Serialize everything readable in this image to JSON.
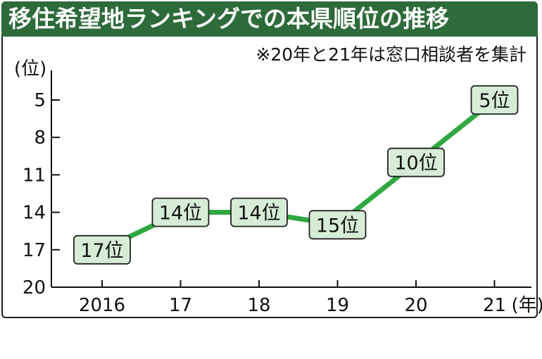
{
  "chart_data": {
    "type": "line",
    "title": "移住希望地ランキングでの本県順位の推移",
    "note": "※20年と21年は窓口相談者を集計",
    "ylabel": "(位)",
    "xlabel_unit": "(年)",
    "y_axis": {
      "inverted": true,
      "ylim": [
        20,
        3
      ],
      "ticks": [
        "5",
        "8",
        "11",
        "14",
        "17",
        "20"
      ]
    },
    "x_ticks": [
      "2016",
      "17",
      "18",
      "19",
      "20",
      "21"
    ],
    "x": [
      2016,
      2017,
      2018,
      2019,
      2020,
      2021
    ],
    "values": [
      17,
      14,
      14,
      15,
      10,
      5
    ],
    "data_labels": [
      "17位",
      "14位",
      "14位",
      "15位",
      "10位",
      "5位"
    ],
    "colors": {
      "line": "#2fa841",
      "label_fill": "#d7ecd7",
      "title_bg": "#2e6b3a"
    },
    "grid": false
  }
}
